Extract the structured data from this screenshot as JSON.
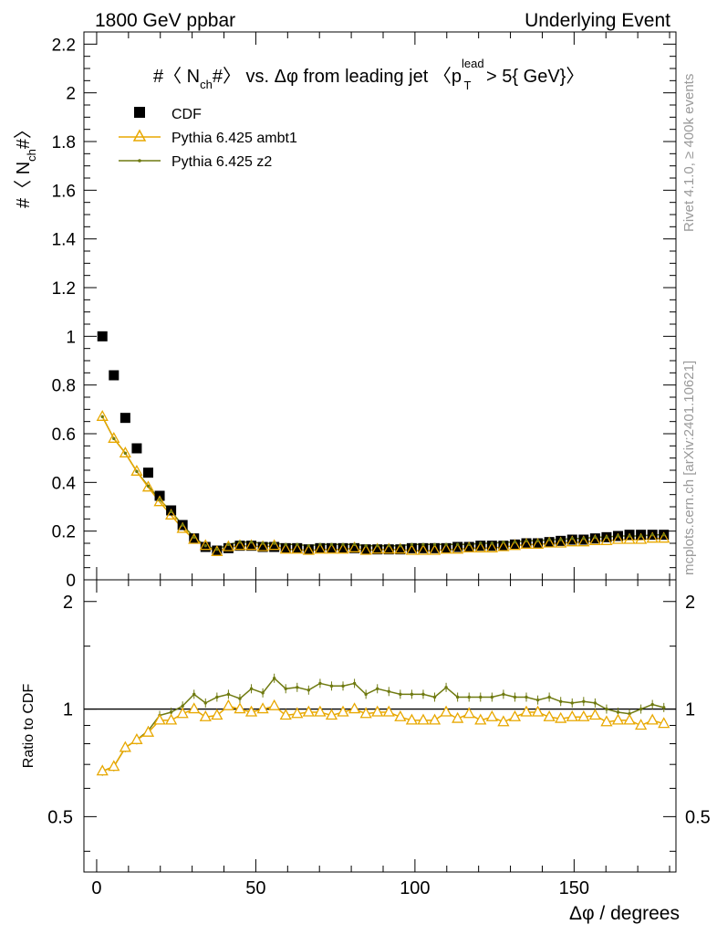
{
  "header": {
    "left": "1800 GeV ppbar",
    "right": "Underlying Event"
  },
  "side_labels": {
    "rivet": "Rivet 4.1.0, ≥ 400k events",
    "mcplots": "mcplots.cern.ch [arXiv:2401.10621]"
  },
  "chart_data": [
    {
      "type": "scatter",
      "title": "#〈 N_ch#〉 vs. Δφ from leading jet (p_T^lead > 5{ GeV})",
      "title_parts": {
        "prefix": "#〈 N",
        "ch": "ch",
        "mid": "#〉 vs. Δφ from leading jet  〈p",
        "lead": "lead",
        "T": "T",
        "suffix": " > 5{ GeV}〉"
      },
      "ylabel_parts": {
        "a": "#〈 N",
        "sub": "ch",
        "b": "#〉"
      },
      "xlabel": "Δφ / degrees",
      "xlim": [
        -4,
        182
      ],
      "ylim": [
        0,
        2.25
      ],
      "yticks": [
        0,
        0.2,
        0.4,
        0.6,
        0.8,
        1,
        1.2,
        1.4,
        1.6,
        1.8,
        2,
        2.2
      ],
      "ytick_labels": [
        "0",
        "0.2",
        "0.4",
        "0.6",
        "0.8",
        "1",
        "1.2",
        "1.4",
        "1.6",
        "1.8",
        "2",
        "2.2"
      ],
      "x": [
        1.8,
        5.4,
        9.0,
        12.6,
        16.2,
        19.8,
        23.4,
        27.0,
        30.6,
        34.2,
        37.8,
        41.4,
        45.0,
        48.6,
        52.2,
        55.8,
        59.4,
        63.0,
        66.6,
        70.2,
        73.8,
        77.4,
        81.0,
        84.6,
        88.2,
        91.8,
        95.4,
        99.0,
        102.6,
        106.2,
        109.8,
        113.4,
        117.0,
        120.6,
        124.2,
        127.8,
        131.4,
        135.0,
        138.6,
        142.2,
        145.8,
        149.4,
        153.0,
        156.6,
        160.2,
        163.8,
        167.4,
        171.0,
        174.6,
        178.2
      ],
      "series": [
        {
          "name": "CDF",
          "marker": "square",
          "color": "#000000",
          "values": [
            1.0,
            0.84,
            0.665,
            0.54,
            0.44,
            0.345,
            0.285,
            0.225,
            0.17,
            0.135,
            0.12,
            0.13,
            0.14,
            0.14,
            0.135,
            0.135,
            0.13,
            0.13,
            0.125,
            0.13,
            0.13,
            0.13,
            0.13,
            0.125,
            0.125,
            0.125,
            0.125,
            0.13,
            0.13,
            0.13,
            0.13,
            0.135,
            0.135,
            0.14,
            0.14,
            0.14,
            0.145,
            0.15,
            0.15,
            0.155,
            0.16,
            0.165,
            0.165,
            0.17,
            0.175,
            0.18,
            0.185,
            0.185,
            0.185,
            0.185
          ]
        },
        {
          "name": "Pythia 6.425 ambt1",
          "marker": "triangle",
          "color": "#e8a800",
          "values": [
            0.67,
            0.58,
            0.52,
            0.445,
            0.38,
            0.32,
            0.265,
            0.21,
            0.165,
            0.14,
            0.115,
            0.135,
            0.14,
            0.14,
            0.135,
            0.14,
            0.125,
            0.125,
            0.12,
            0.125,
            0.125,
            0.125,
            0.13,
            0.12,
            0.125,
            0.125,
            0.125,
            0.12,
            0.12,
            0.12,
            0.125,
            0.125,
            0.13,
            0.13,
            0.13,
            0.135,
            0.14,
            0.145,
            0.145,
            0.15,
            0.15,
            0.155,
            0.155,
            0.16,
            0.16,
            0.165,
            0.165,
            0.165,
            0.17,
            0.17
          ]
        },
        {
          "name": "Pythia 6.425 z2",
          "marker": "dot",
          "color": "#6f7a10",
          "values": [
            0.67,
            0.58,
            0.52,
            0.445,
            0.385,
            0.33,
            0.28,
            0.225,
            0.175,
            0.14,
            0.125,
            0.145,
            0.155,
            0.155,
            0.15,
            0.15,
            0.145,
            0.145,
            0.14,
            0.145,
            0.145,
            0.145,
            0.145,
            0.14,
            0.14,
            0.14,
            0.14,
            0.145,
            0.145,
            0.145,
            0.145,
            0.145,
            0.145,
            0.15,
            0.15,
            0.155,
            0.155,
            0.16,
            0.16,
            0.165,
            0.165,
            0.17,
            0.17,
            0.175,
            0.175,
            0.18,
            0.18,
            0.18,
            0.185,
            0.185
          ]
        }
      ]
    },
    {
      "type": "line",
      "ylabel": "Ratio to CDF",
      "xlabel": "Δφ / degrees",
      "xlim": [
        -4,
        182
      ],
      "ylim": [
        0.35,
        2.3
      ],
      "yscale": "log",
      "yticks": [
        0.5,
        1,
        2
      ],
      "ytick_labels": [
        "0.5",
        "1",
        "2"
      ],
      "xticks": [
        0,
        50,
        100,
        150
      ],
      "xtick_labels": [
        "0",
        "50",
        "100",
        "150"
      ],
      "reference_line": 1,
      "series": [
        {
          "name": "Pythia 6.425 ambt1",
          "color": "#e8a800",
          "values": [
            0.67,
            0.69,
            0.78,
            0.82,
            0.86,
            0.93,
            0.93,
            0.97,
            1.0,
            0.95,
            0.96,
            1.02,
            1.0,
            0.98,
            1.0,
            1.02,
            0.96,
            0.97,
            0.98,
            0.98,
            0.96,
            0.98,
            1.0,
            0.97,
            0.98,
            0.98,
            0.95,
            0.93,
            0.93,
            0.93,
            0.98,
            0.94,
            0.97,
            0.93,
            0.95,
            0.92,
            0.95,
            0.98,
            0.98,
            0.95,
            0.94,
            0.95,
            0.95,
            0.96,
            0.92,
            0.93,
            0.93,
            0.9,
            0.93,
            0.91
          ]
        },
        {
          "name": "Pythia 6.425 z2",
          "color": "#6f7a10",
          "values": [
            0.67,
            0.69,
            0.78,
            0.82,
            0.87,
            0.96,
            0.98,
            1.02,
            1.1,
            1.04,
            1.08,
            1.1,
            1.07,
            1.14,
            1.11,
            1.22,
            1.14,
            1.15,
            1.13,
            1.18,
            1.16,
            1.16,
            1.18,
            1.1,
            1.14,
            1.12,
            1.1,
            1.1,
            1.1,
            1.08,
            1.15,
            1.08,
            1.08,
            1.08,
            1.08,
            1.1,
            1.08,
            1.08,
            1.06,
            1.08,
            1.05,
            1.04,
            1.05,
            1.04,
            1.0,
            0.98,
            0.97,
            1.0,
            1.03,
            1.01
          ]
        }
      ]
    }
  ]
}
